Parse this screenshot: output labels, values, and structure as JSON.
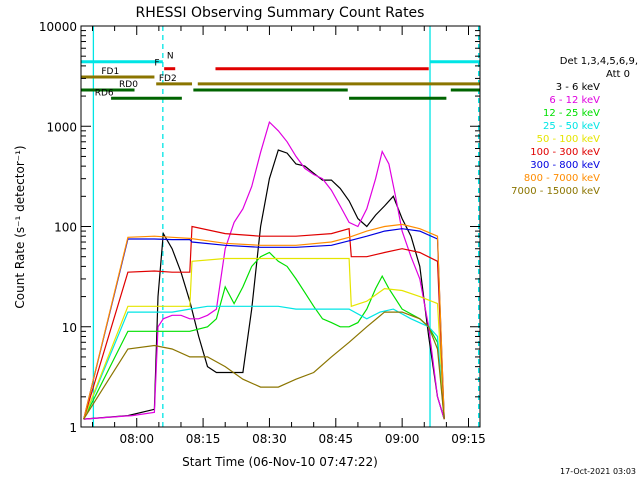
{
  "chart_data": {
    "type": "line",
    "title": "RHESSI Observing Summary Count Rates",
    "xlabel": "Start Time (06-Nov-10 07:47:22)",
    "ylabel": "Count Rate (s⁻¹ detector⁻¹)",
    "yscale": "log",
    "ylim": [
      1,
      10000
    ],
    "xlim_min": [
      -12.6,
      77.6
    ],
    "x_ticks": [
      {
        "min": 0,
        "label": "08:00"
      },
      {
        "min": 15,
        "label": "08:15"
      },
      {
        "min": 30,
        "label": "08:30"
      },
      {
        "min": 45,
        "label": "08:45"
      },
      {
        "min": 60,
        "label": "09:00"
      },
      {
        "min": 75,
        "label": "09:15"
      }
    ],
    "y_ticks": [
      {
        "value": 1,
        "label": "1"
      },
      {
        "value": 10,
        "label": "10"
      },
      {
        "value": 100,
        "label": "100"
      },
      {
        "value": 1000,
        "label": "1000"
      },
      {
        "value": 10000,
        "label": "10000"
      }
    ],
    "legend_header": [
      "Det 1,3,4,5,6,9,",
      "Att 0"
    ],
    "timestamp": "17-Oct-2021 03:03",
    "vlines": [
      {
        "x": -9.8,
        "color": "#00e5e5",
        "style": "solid"
      },
      {
        "x": 5.9,
        "color": "#00e5e5",
        "style": "dashed"
      },
      {
        "x": 66.3,
        "color": "#00e5e5",
        "style": "solid"
      },
      {
        "x": 77.3,
        "color": "#00e5e5",
        "style": "dashed"
      }
    ],
    "bars": [
      {
        "label": "N",
        "color": "#00e5e5",
        "y": 4400,
        "segments": [
          [
            -12.6,
            5.9
          ],
          [
            66.3,
            77.6
          ]
        ]
      },
      {
        "label": "F",
        "color": "#e00000",
        "y": 3750,
        "segments": [
          [
            6.2,
            8.7
          ],
          [
            17.8,
            66.0
          ]
        ]
      },
      {
        "label": "FD1",
        "color": "#8b7500",
        "y": 3100,
        "segments": [
          [
            -12.6,
            4.0
          ]
        ]
      },
      {
        "label": "FD2",
        "color": "#8b7500",
        "y": 2650,
        "segments": [
          [
            4.4,
            12.5
          ],
          [
            13.8,
            77.6
          ]
        ]
      },
      {
        "label": "RD0",
        "color": "#006400",
        "y": 2300,
        "segments": [
          [
            -12.6,
            -0.5
          ],
          [
            12.8,
            47.7
          ],
          [
            71.0,
            77.6
          ]
        ]
      },
      {
        "label": "RD6",
        "color": "#006400",
        "y": 1900,
        "segments": [
          [
            -5.8,
            10.2
          ],
          [
            48.0,
            70.0
          ]
        ]
      }
    ],
    "series": [
      {
        "name": "3 - 6 keV",
        "color": "#000000",
        "x": [
          -12.0,
          -2.0,
          4.0,
          4.8,
          6.0,
          8.0,
          10.0,
          12.0,
          14.0,
          16.0,
          18.0,
          20.0,
          22.0,
          24.0,
          26.0,
          28.0,
          30.0,
          32.0,
          34.0,
          36.0,
          38.0,
          40.0,
          42.0,
          44.0,
          46.0,
          48.0,
          50.0,
          52.0,
          54.0,
          56.0,
          58.0,
          60.0,
          62.0,
          64.0,
          66.0,
          68.0,
          69.5
        ],
        "y": [
          1.2,
          1.3,
          1.5,
          20,
          85,
          60,
          35,
          18,
          8,
          4,
          3.5,
          3.5,
          3.5,
          3.5,
          15,
          100,
          300,
          580,
          540,
          420,
          400,
          340,
          290,
          290,
          240,
          180,
          120,
          100,
          130,
          160,
          200,
          120,
          80,
          40,
          8,
          2,
          1.2
        ]
      },
      {
        "name": "6 - 12 keV",
        "color": "#e000e0",
        "x": [
          -12.0,
          -1.0,
          4.0,
          4.8,
          6.0,
          8.0,
          10.0,
          12.0,
          14.0,
          16.0,
          18.0,
          20.0,
          22.0,
          24.0,
          26.0,
          28.0,
          30.0,
          32.0,
          34.0,
          36.0,
          38.0,
          40.0,
          42.0,
          44.0,
          46.0,
          48.0,
          50.0,
          52.0,
          54.0,
          55.5,
          57.0,
          58.5,
          60.0,
          62.0,
          64.0,
          66.0,
          68.0,
          69.5
        ],
        "y": [
          1.2,
          1.3,
          1.4,
          10,
          12,
          13,
          13,
          12,
          12,
          13,
          15,
          60,
          110,
          150,
          250,
          550,
          1100,
          900,
          700,
          500,
          380,
          330,
          300,
          230,
          160,
          110,
          100,
          150,
          300,
          560,
          420,
          200,
          90,
          50,
          30,
          10,
          2,
          1.2
        ]
      },
      {
        "name": "12 - 25 keV",
        "color": "#00e000",
        "x": [
          -12.0,
          -2.0,
          4.0,
          8.0,
          12.0,
          16.0,
          18.0,
          20.0,
          22.0,
          24.0,
          26.0,
          28.0,
          30.0,
          32.0,
          34.0,
          36.0,
          38.0,
          40.0,
          42.0,
          44.0,
          46.0,
          48.0,
          50.0,
          52.0,
          54.0,
          55.5,
          57.0,
          60.0,
          64.0,
          66.0,
          68.0,
          69.5
        ],
        "y": [
          1.2,
          9,
          9,
          9,
          9,
          10,
          12,
          25,
          17,
          25,
          40,
          50,
          55,
          45,
          40,
          30,
          22,
          16,
          12,
          11,
          10,
          10,
          11,
          15,
          24,
          32,
          24,
          15,
          12,
          10,
          7,
          1.2
        ]
      },
      {
        "name": "25 - 50 keV",
        "color": "#00e5e5",
        "x": [
          -12.0,
          -2.0,
          4.0,
          8.0,
          12.0,
          16.0,
          20.0,
          24.0,
          28.0,
          32.0,
          36.0,
          40.0,
          44.0,
          48.0,
          52.0,
          55.0,
          58.0,
          62.0,
          66.0,
          68.0,
          69.5
        ],
        "y": [
          1.2,
          14,
          14,
          14,
          15,
          16,
          16,
          16,
          16,
          16,
          15,
          15,
          15,
          15,
          12,
          14,
          15,
          12,
          10,
          8,
          1.2
        ]
      },
      {
        "name": "50 - 100 keV",
        "color": "#e5e500",
        "x": [
          -12.0,
          -2.0,
          4.0,
          8.0,
          12.0,
          12.5,
          20.0,
          28.0,
          36.0,
          44.0,
          48.0,
          48.5,
          52.0,
          56.0,
          60.0,
          64.0,
          68.0,
          69.5
        ],
        "y": [
          1.2,
          16,
          16,
          16,
          16,
          45,
          48,
          48,
          48,
          48,
          48,
          16,
          18,
          24,
          23,
          20,
          17,
          1.2
        ]
      },
      {
        "name": "100 - 300 keV",
        "color": "#e00000",
        "x": [
          -12.0,
          -2.0,
          4.0,
          8.0,
          12.0,
          12.5,
          20.0,
          28.0,
          36.0,
          44.0,
          48.0,
          48.5,
          52.0,
          56.0,
          60.0,
          64.0,
          68.0,
          69.5
        ],
        "y": [
          1.2,
          35,
          36,
          35,
          35,
          100,
          85,
          80,
          80,
          85,
          95,
          50,
          50,
          55,
          60,
          55,
          45,
          1.2
        ]
      },
      {
        "name": "300 - 800 keV",
        "color": "#0000e0",
        "x": [
          -12.0,
          -2.0,
          4.0,
          8.0,
          12.0,
          12.5,
          20.0,
          28.0,
          36.0,
          44.0,
          48.0,
          52.0,
          56.0,
          60.0,
          64.0,
          68.0,
          69.5
        ],
        "y": [
          1.2,
          75,
          75,
          74,
          74,
          70,
          65,
          62,
          62,
          65,
          72,
          80,
          90,
          95,
          90,
          75,
          1.2
        ]
      },
      {
        "name": "800 - 7000 keV",
        "color": "#ff8c00",
        "x": [
          -12.0,
          -2.0,
          4.0,
          8.0,
          12.0,
          16.0,
          20.0,
          28.0,
          36.0,
          44.0,
          48.0,
          52.0,
          56.0,
          60.0,
          64.0,
          68.0,
          69.5
        ],
        "y": [
          1.2,
          78,
          80,
          78,
          76,
          72,
          68,
          65,
          65,
          70,
          78,
          90,
          100,
          105,
          95,
          80,
          1.2
        ]
      },
      {
        "name": "7000 - 15000 keV",
        "color": "#8b7500",
        "x": [
          -12.0,
          -2.0,
          4.0,
          8.0,
          12.0,
          16.0,
          20.0,
          24.0,
          28.0,
          32.0,
          36.0,
          40.0,
          44.0,
          48.0,
          52.0,
          56.0,
          60.0,
          64.0,
          66.0,
          68.0,
          69.5
        ],
        "y": [
          1.2,
          6,
          6.5,
          6,
          5,
          5,
          4,
          3,
          2.5,
          2.5,
          3,
          3.5,
          5,
          7,
          10,
          14,
          14,
          12,
          10,
          6,
          1.2
        ]
      }
    ]
  }
}
